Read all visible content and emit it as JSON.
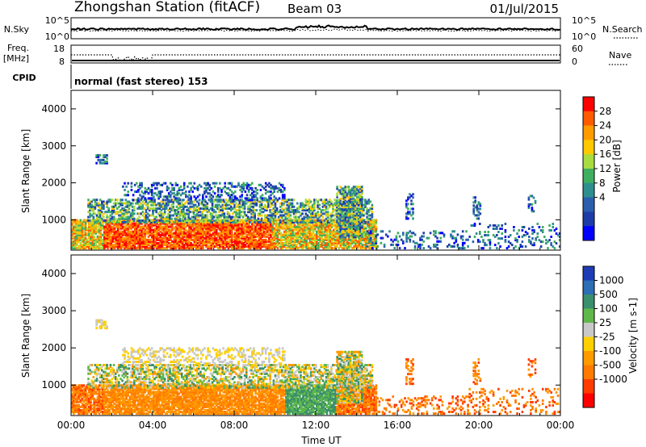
{
  "header": {
    "title": "Zhongshan Station (fitACF)",
    "beam": "Beam 03",
    "date": "01/Jul/2015"
  },
  "top_panels": {
    "nsky_label": "N.Sky",
    "nsky_ticks": [
      "10^5",
      "10^0"
    ],
    "nsearch_label": "N.Search",
    "nsearch_ticks": [
      "10^5",
      "10^0"
    ],
    "freq_label_1": "Freq.",
    "freq_label_2": "[MHz]",
    "freq_ticks": [
      "18",
      "8"
    ],
    "nave_label": "Nave",
    "nave_ticks": [
      "60",
      "0"
    ],
    "cpid_label": "CPID",
    "cpid_text": "normal (fast stereo) 153"
  },
  "chart_data": [
    {
      "type": "heatmap",
      "name": "power",
      "ylabel": "Slant Range [km]",
      "yticks": [
        "4000",
        "3000",
        "2000",
        "1000"
      ],
      "ylim": [
        180,
        4500
      ],
      "colorbar_label": "Power [dB]",
      "colorbar_ticks": [
        "28",
        "24",
        "20",
        "16",
        "12",
        "8",
        "4"
      ],
      "colorbar_colors": [
        "#ff0000",
        "#ff5a00",
        "#ff9a00",
        "#ffc800",
        "#a8dc40",
        "#3fae5f",
        "#2f8f8f",
        "#2b5fae",
        "#1e3ca8",
        "#0000ff"
      ],
      "xticks": [
        "00:00",
        "04:00",
        "08:00",
        "12:00",
        "16:00",
        "20:00",
        "00:00"
      ]
    },
    {
      "type": "heatmap",
      "name": "velocity",
      "ylabel": "Slant Range [km]",
      "yticks": [
        "4000",
        "3000",
        "2000",
        "1000"
      ],
      "ylim": [
        180,
        4500
      ],
      "colorbar_label": "Velocity [m s-1]",
      "colorbar_ticks": [
        "1000",
        "500",
        "100",
        "25",
        "-25",
        "-100",
        "-500",
        "-1000"
      ],
      "colorbar_colors": [
        "#1e3cb4",
        "#2d6eb4",
        "#3a8f6c",
        "#5fb84a",
        "#c8c8c8",
        "#ffd000",
        "#ff9a00",
        "#ff7a00",
        "#ff3c00",
        "#ff0000"
      ],
      "xticks": [
        "00:00",
        "04:00",
        "08:00",
        "12:00",
        "16:00",
        "20:00",
        "00:00"
      ],
      "xlabel": "Time UT"
    }
  ]
}
